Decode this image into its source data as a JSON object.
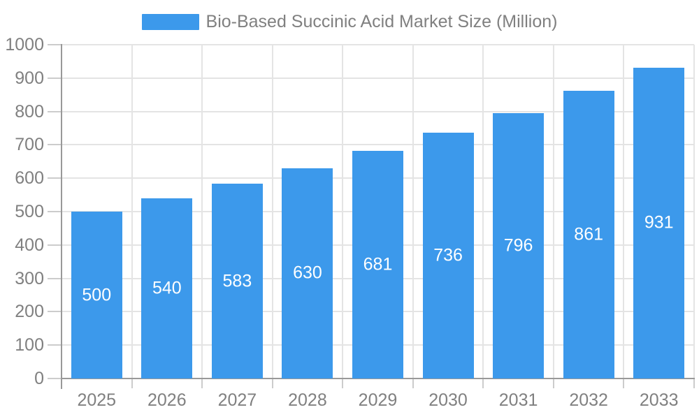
{
  "chart_data": {
    "type": "bar",
    "legend": {
      "label": "Bio-Based Succinic Acid Market Size (Million)",
      "position": "top-center"
    },
    "categories": [
      "2025",
      "2026",
      "2027",
      "2028",
      "2029",
      "2030",
      "2031",
      "2032",
      "2033"
    ],
    "values": [
      500,
      540,
      583,
      630,
      681,
      736,
      796,
      861,
      931
    ],
    "value_labels_shown": true,
    "ylim": [
      0,
      1000
    ],
    "yticks": [
      0,
      100,
      200,
      300,
      400,
      500,
      600,
      700,
      800,
      900,
      1000
    ],
    "grid": {
      "horizontal": true,
      "vertical": true
    },
    "colors": {
      "bar": "#3c99eb",
      "value_label": "#ffffff",
      "axis_line": "#999999",
      "tick_line": "#cccccc",
      "grid_line": "#e4e4e4",
      "axis_text": "#808080",
      "legend_text": "#808080",
      "background": "#ffffff"
    }
  }
}
